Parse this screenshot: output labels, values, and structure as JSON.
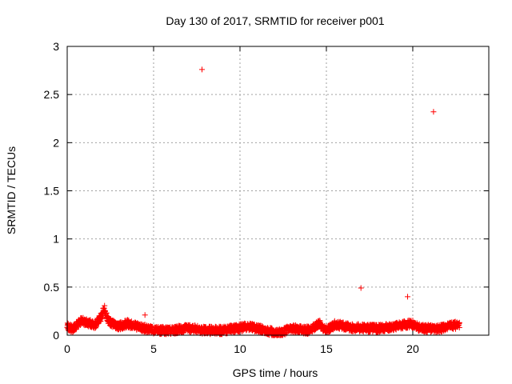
{
  "chart_data": {
    "type": "scatter",
    "title": "Day 130 of 2017, SRMTID for receiver p001",
    "xlabel": "GPS time / hours",
    "ylabel": "SRMTID / TECUs",
    "xlim": [
      0,
      24.4
    ],
    "ylim": [
      0,
      3
    ],
    "x_ticks": [
      0,
      5,
      10,
      15,
      20
    ],
    "x_tick_labels": [
      "0",
      "5",
      "10",
      "15",
      "20"
    ],
    "y_ticks": [
      0,
      0.5,
      1,
      1.5,
      2,
      2.5,
      3
    ],
    "y_tick_labels": [
      "0",
      "0.5",
      "1",
      "1.5",
      "2",
      "2.5",
      "3"
    ],
    "grid": true,
    "marker": "+",
    "color": "#ff0000",
    "outliers": [
      {
        "x": 7.8,
        "y": 2.76
      },
      {
        "x": 21.2,
        "y": 2.32
      },
      {
        "x": 17.0,
        "y": 0.49
      },
      {
        "x": 19.7,
        "y": 0.4
      },
      {
        "x": 4.5,
        "y": 0.21
      }
    ],
    "baseline_profile": [
      {
        "x": 0.0,
        "y": 0.09
      },
      {
        "x": 0.3,
        "y": 0.06
      },
      {
        "x": 0.8,
        "y": 0.15
      },
      {
        "x": 1.2,
        "y": 0.13
      },
      {
        "x": 1.6,
        "y": 0.1
      },
      {
        "x": 2.0,
        "y": 0.2
      },
      {
        "x": 2.15,
        "y": 0.28
      },
      {
        "x": 2.4,
        "y": 0.14
      },
      {
        "x": 3.0,
        "y": 0.09
      },
      {
        "x": 3.5,
        "y": 0.12
      },
      {
        "x": 4.0,
        "y": 0.09
      },
      {
        "x": 5.0,
        "y": 0.05
      },
      {
        "x": 6.0,
        "y": 0.05
      },
      {
        "x": 7.0,
        "y": 0.07
      },
      {
        "x": 8.0,
        "y": 0.05
      },
      {
        "x": 9.0,
        "y": 0.05
      },
      {
        "x": 10.5,
        "y": 0.09
      },
      {
        "x": 11.5,
        "y": 0.05
      },
      {
        "x": 12.2,
        "y": 0.02
      },
      {
        "x": 13.0,
        "y": 0.07
      },
      {
        "x": 14.0,
        "y": 0.05
      },
      {
        "x": 14.6,
        "y": 0.12
      },
      {
        "x": 15.0,
        "y": 0.05
      },
      {
        "x": 15.5,
        "y": 0.11
      },
      {
        "x": 16.5,
        "y": 0.08
      },
      {
        "x": 18.0,
        "y": 0.07
      },
      {
        "x": 19.0,
        "y": 0.09
      },
      {
        "x": 19.9,
        "y": 0.12
      },
      {
        "x": 20.5,
        "y": 0.07
      },
      {
        "x": 21.5,
        "y": 0.07
      },
      {
        "x": 22.0,
        "y": 0.09
      },
      {
        "x": 22.7,
        "y": 0.11
      }
    ],
    "baseline_x_range": [
      0,
      22.7
    ],
    "baseline_spread": 0.04,
    "baseline_step": 0.02
  }
}
